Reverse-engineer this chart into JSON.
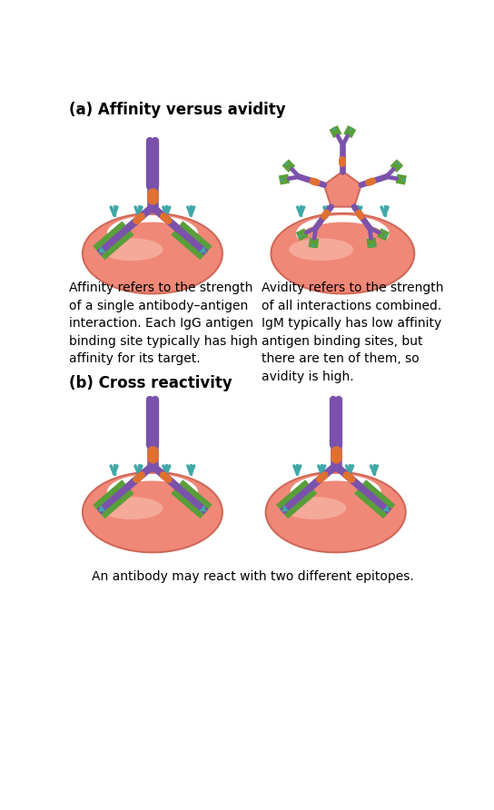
{
  "title_a": "(a) Affinity versus avidity",
  "title_b": "(b) Cross reactivity",
  "text_affinity": "Affinity refers to the strength\nof a single antibody–antigen\ninteraction. Each IgG antigen\nbinding site typically has high\naffinity for its target.",
  "text_avidity": "Avidity refers to the strength\nof all interactions combined.\nIgM typically has low affinity\nantigen binding sites, but\nthere are ten of them, so\navidity is high.",
  "text_cross": "An antibody may react with two different epitopes.",
  "purple": "#7B52AB",
  "green": "#5A9E3A",
  "orange": "#E07030",
  "salmon": "#F08878",
  "salmon_edge": "#D06858",
  "salmon_hi": "#F8B8A8",
  "bg": "#ffffff",
  "teal": "#40A8A8"
}
